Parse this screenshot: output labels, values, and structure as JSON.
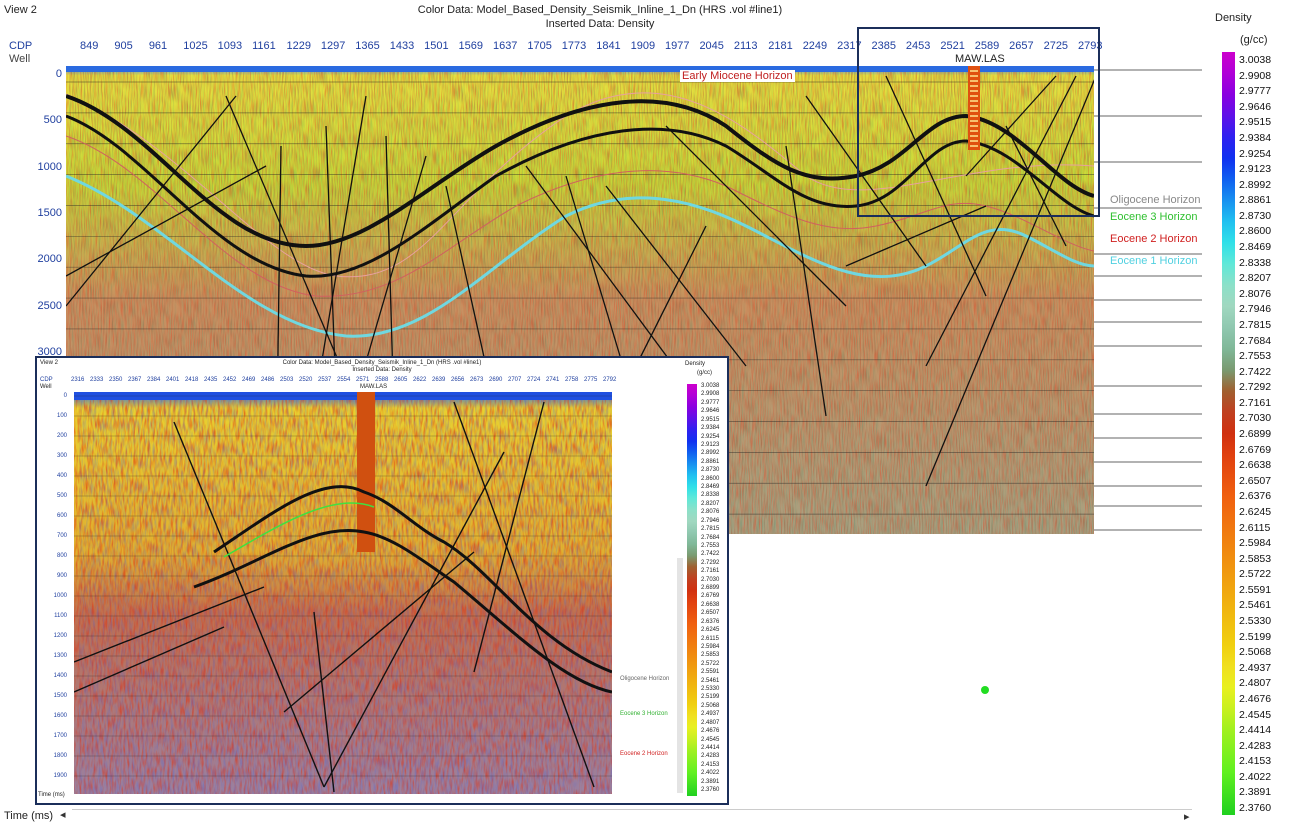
{
  "view_label": "View 2",
  "title_line1": "Color Data: Model_Based_Density_Seismik_Inline_1_Dn (HRS .vol #line1)",
  "title_line2": "Inserted Data: Density",
  "cdp_label": "CDP",
  "well_label": "Well",
  "cdp_ticks": [
    "849",
    "905",
    "961",
    "1025",
    "1093",
    "1161",
    "1229",
    "1297",
    "1365",
    "1433",
    "1501",
    "1569",
    "1637",
    "1705",
    "1773",
    "1841",
    "1909",
    "1977",
    "2045",
    "2113",
    "2181",
    "2249",
    "2317",
    "2385",
    "2453",
    "2521",
    "2589",
    "2657",
    "2725",
    "2793"
  ],
  "time_ticks": [
    "0",
    "500",
    "1000",
    "1500",
    "2000",
    "2500",
    "3000"
  ],
  "well_name": "MAW.LAS",
  "horizon_labels": {
    "early_miocene": "Early Miocene Horizon",
    "oligocene": "Oligocene Horizon",
    "eocene3": "Eocene 3 Horizon",
    "eocene2": "Eocene 2 Horizon",
    "eocene1": "Eocene 1 Horizon"
  },
  "colorbar": {
    "title": "Density",
    "unit": "(g/cc)",
    "ticks": [
      "3.0038",
      "2.9908",
      "2.9777",
      "2.9646",
      "2.9515",
      "2.9384",
      "2.9254",
      "2.9123",
      "2.8992",
      "2.8861",
      "2.8730",
      "2.8600",
      "2.8469",
      "2.8338",
      "2.8207",
      "2.8076",
      "2.7946",
      "2.7815",
      "2.7684",
      "2.7553",
      "2.7422",
      "2.7292",
      "2.7161",
      "2.7030",
      "2.6899",
      "2.6769",
      "2.6638",
      "2.6507",
      "2.6376",
      "2.6245",
      "2.6115",
      "2.5984",
      "2.5853",
      "2.5722",
      "2.5591",
      "2.5461",
      "2.5330",
      "2.5199",
      "2.5068",
      "2.4937",
      "2.4807",
      "2.4676",
      "2.4545",
      "2.4414",
      "2.4283",
      "2.4153",
      "2.4022",
      "2.3891",
      "2.3760"
    ],
    "colors": [
      "#cc00cc",
      "#b000d8",
      "#8a00e0",
      "#6010e8",
      "#3020f0",
      "#1030f0",
      "#1060f0",
      "#1890f0",
      "#20c0f0",
      "#30e0e8",
      "#60e8d8",
      "#8ce0c8",
      "#a0d8c0",
      "#90c8b0",
      "#80b898",
      "#7a9a70",
      "#a06030",
      "#c04020",
      "#d03010",
      "#e04010",
      "#e85010",
      "#f06010",
      "#f07010",
      "#f08010",
      "#f09010",
      "#f0a010",
      "#f0b010",
      "#f0c010",
      "#f0d010",
      "#f0e020",
      "#e8f020",
      "#c8f020",
      "#a0f020",
      "#80f020",
      "#60f020",
      "#40e020",
      "#20d020"
    ]
  },
  "inset": {
    "view_label": "View 2",
    "title_line1": "Color Data: Model_Based_Density_Seismik_Inline_1_Dn (HRS .vol #line1)",
    "title_line2": "Inserted Data: Density",
    "cdp_label": "CDP",
    "well_label": "Well",
    "cdp_ticks": [
      "2316",
      "2333",
      "2350",
      "2367",
      "2384",
      "2401",
      "2418",
      "2435",
      "2452",
      "2469",
      "2486",
      "2503",
      "2520",
      "2537",
      "2554",
      "2571",
      "2588",
      "2605",
      "2622",
      "2639",
      "2656",
      "2673",
      "2690",
      "2707",
      "2724",
      "2741",
      "2758",
      "2775",
      "2792"
    ],
    "time_ticks": [
      "0",
      "100",
      "200",
      "300",
      "400",
      "500",
      "600",
      "700",
      "800",
      "900",
      "1000",
      "1100",
      "1200",
      "1300",
      "1400",
      "1500",
      "1600",
      "1700",
      "1800",
      "1900"
    ],
    "well_name": "MAW.LAS",
    "colorbar_title": "Density",
    "colorbar_unit": "(g/cc)",
    "horizon_labels": {
      "oligocene": "Oligocene Horizon",
      "eocene3": "Eocene 3 Horizon",
      "eocene2": "Eocene 2 Horizon"
    },
    "time_label": "Time (ms)"
  },
  "time_label": "Time (ms)"
}
